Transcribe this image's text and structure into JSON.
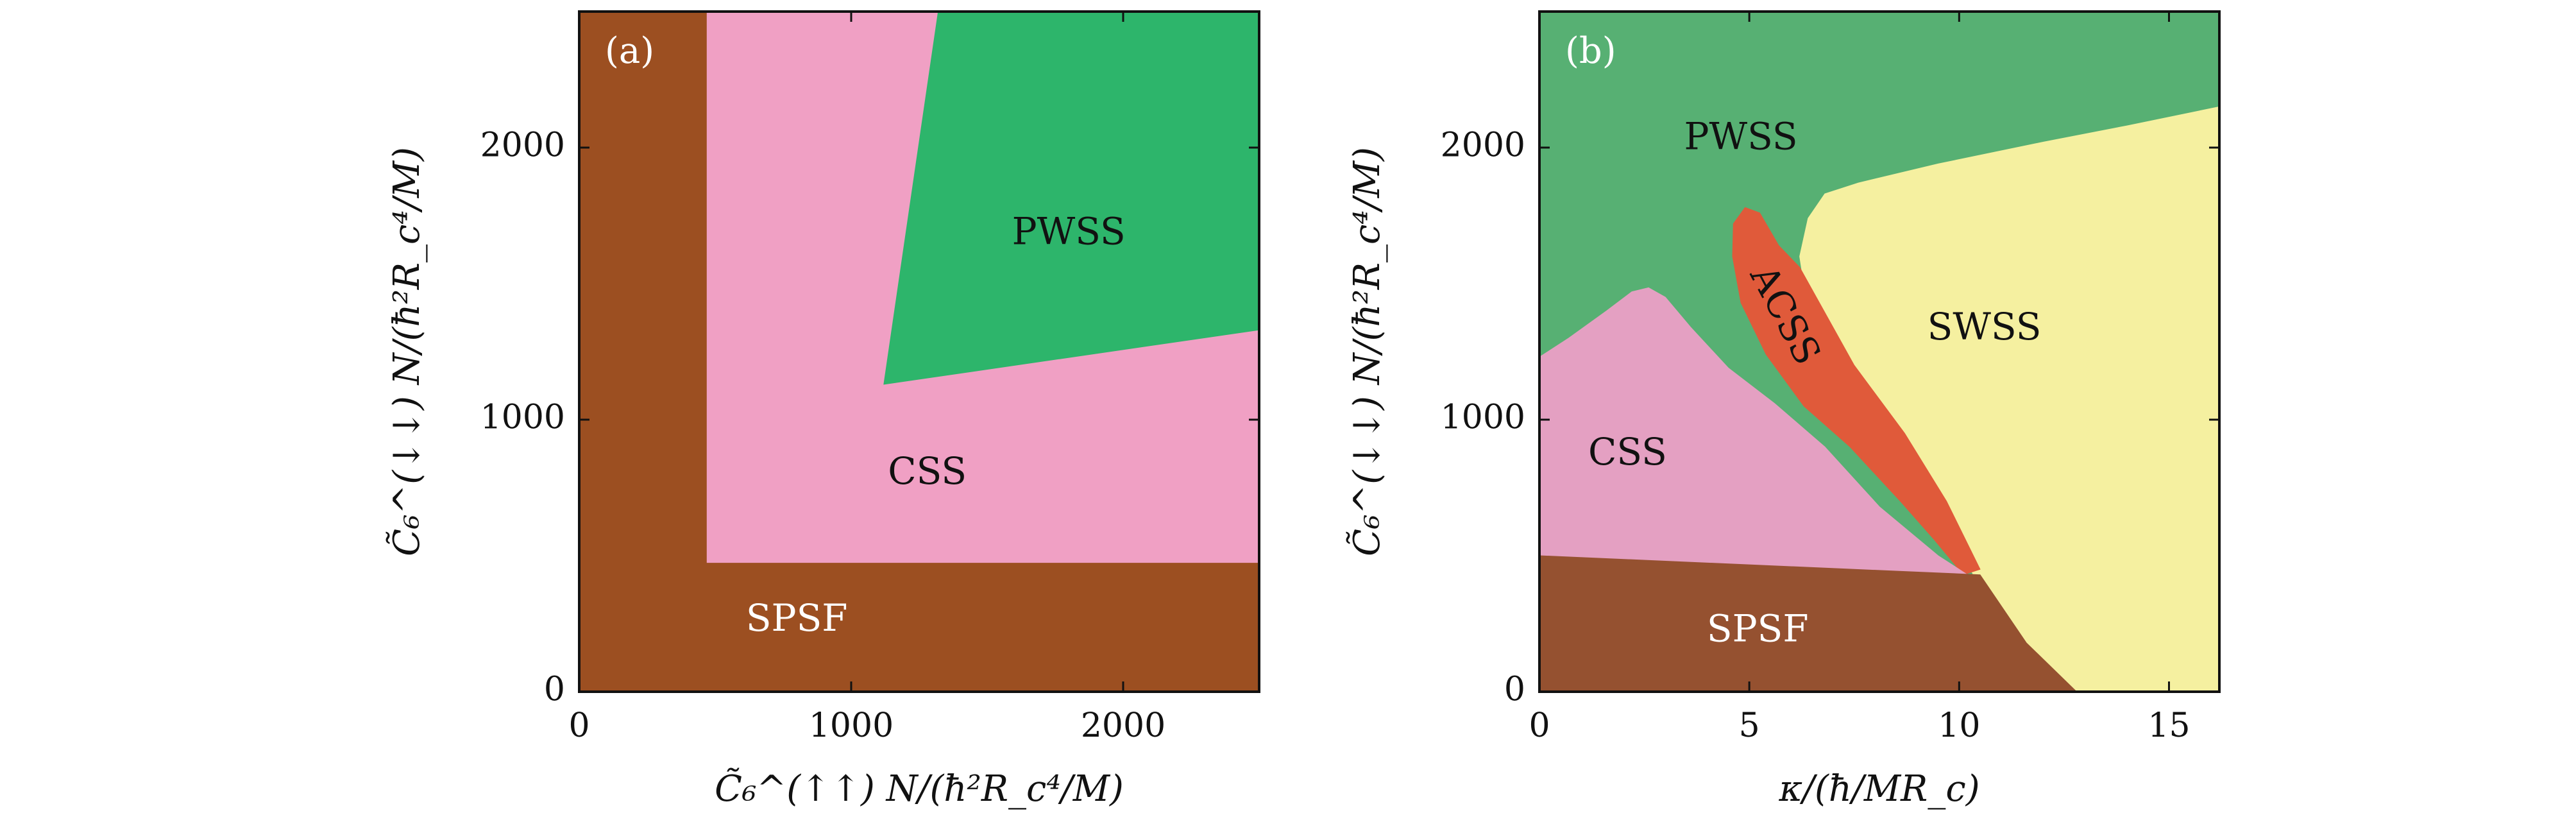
{
  "chart_data": [
    {
      "type": "area",
      "panel": "(a)",
      "xlabel": "C̃₆^(↑↑) N/(ħ²R_c⁴/M)",
      "ylabel": "C̃₆^(↓↓) N/(ħ²R_c⁴/M)",
      "xlim": [
        0,
        2500
      ],
      "ylim": [
        0,
        2500
      ],
      "x_ticks": [
        "0",
        "1000",
        "2000"
      ],
      "y_ticks": [
        "0",
        "1000",
        "2000"
      ],
      "x_tick_values": [
        0,
        1000,
        2000
      ],
      "y_tick_values": [
        0,
        1000,
        2000
      ],
      "regions": [
        {
          "name": "SPSF",
          "color": "#9c4f21",
          "label_color": "#ffffff",
          "label_at": [
            800,
            260
          ],
          "polygon": [
            [
              0,
              0
            ],
            [
              2500,
              0
            ],
            [
              2500,
              2500
            ],
            [
              0,
              2500
            ]
          ]
        },
        {
          "name": "CSS",
          "color": "#f0a0c4",
          "label_color": "#111111",
          "label_at": [
            1280,
            800
          ],
          "polygon": [
            [
              470,
              475
            ],
            [
              2500,
              475
            ],
            [
              2500,
              2500
            ],
            [
              470,
              2500
            ]
          ]
        },
        {
          "name": "PWSS",
          "color": "#2db56b",
          "label_color": "#111111",
          "label_at": [
            1800,
            1680
          ],
          "polygon": [
            [
              1320,
              2500
            ],
            [
              2500,
              2500
            ],
            [
              2500,
              1330
            ],
            [
              1120,
              1130
            ]
          ]
        }
      ]
    },
    {
      "type": "area",
      "panel": "(b)",
      "xlabel": "κ/(ħ/MR_c)",
      "ylabel": "C̃₆^(↓↓) N/(ħ²R_c⁴/M)",
      "xlim": [
        0,
        16.2
      ],
      "ylim": [
        0,
        2500
      ],
      "x_ticks": [
        "0",
        "5",
        "10",
        "15"
      ],
      "y_ticks": [
        "0",
        "1000",
        "2000"
      ],
      "x_tick_values": [
        0,
        5,
        10,
        15
      ],
      "y_tick_values": [
        0,
        1000,
        2000
      ],
      "regions": [
        {
          "name": "PWSS",
          "color": "#57b073",
          "label_color": "#111111",
          "label_at": [
            4.8,
            2030
          ],
          "polygon": [
            [
              0,
              0
            ],
            [
              16.2,
              0
            ],
            [
              16.2,
              2500
            ],
            [
              0,
              2500
            ]
          ]
        },
        {
          "name": "SWSS",
          "color": "#f5f0a0",
          "label_color": "#111111",
          "label_at": [
            10.6,
            1330
          ],
          "polygon": [
            [
              6.2,
              1600
            ],
            [
              6.4,
              1740
            ],
            [
              6.8,
              1830
            ],
            [
              7.6,
              1870
            ],
            [
              9.5,
              1940
            ],
            [
              12,
              2020
            ],
            [
              14,
              2080
            ],
            [
              16.2,
              2150
            ],
            [
              16.2,
              0
            ],
            [
              12.8,
              0
            ],
            [
              11.6,
              180
            ],
            [
              10.5,
              380
            ],
            [
              9.3,
              750
            ],
            [
              8,
              1050
            ],
            [
              7,
              1300
            ],
            [
              6.3,
              1500
            ]
          ]
        },
        {
          "name": "ACSS",
          "color": "#e05a3a",
          "label_color": "#111111",
          "label_at": [
            5.8,
            1380
          ],
          "polygon": [
            [
              4.9,
              1780
            ],
            [
              5.25,
              1760
            ],
            [
              5.7,
              1640
            ],
            [
              6.2,
              1560
            ],
            [
              7.5,
              1200
            ],
            [
              8.7,
              950
            ],
            [
              9.7,
              700
            ],
            [
              10.5,
              450
            ],
            [
              10.1,
              430
            ],
            [
              9.4,
              560
            ],
            [
              8.6,
              700
            ],
            [
              7.4,
              900
            ],
            [
              6.3,
              1050
            ],
            [
              5.4,
              1240
            ],
            [
              4.8,
              1430
            ],
            [
              4.6,
              1600
            ],
            [
              4.62,
              1720
            ]
          ]
        },
        {
          "name": "CSS",
          "color": "#e4a0c2",
          "label_color": "#111111",
          "label_at": [
            2.1,
            870
          ],
          "polygon": [
            [
              0,
              500
            ],
            [
              0,
              1230
            ],
            [
              0.7,
              1300
            ],
            [
              1.6,
              1400
            ],
            [
              2.2,
              1470
            ],
            [
              2.6,
              1485
            ],
            [
              3,
              1450
            ],
            [
              3.6,
              1340
            ],
            [
              4.5,
              1190
            ],
            [
              5.6,
              1060
            ],
            [
              6.8,
              900
            ],
            [
              8.1,
              680
            ],
            [
              9.5,
              500
            ],
            [
              10.2,
              430
            ],
            [
              9.5,
              430
            ],
            [
              0,
              500
            ]
          ]
        },
        {
          "name": "SPSF",
          "color": "#955130",
          "label_color": "#ffffff",
          "label_at": [
            5.2,
            220
          ],
          "polygon": [
            [
              0,
              0
            ],
            [
              12.8,
              0
            ],
            [
              11.6,
              180
            ],
            [
              10.5,
              430
            ],
            [
              0,
              500
            ]
          ]
        }
      ]
    }
  ]
}
